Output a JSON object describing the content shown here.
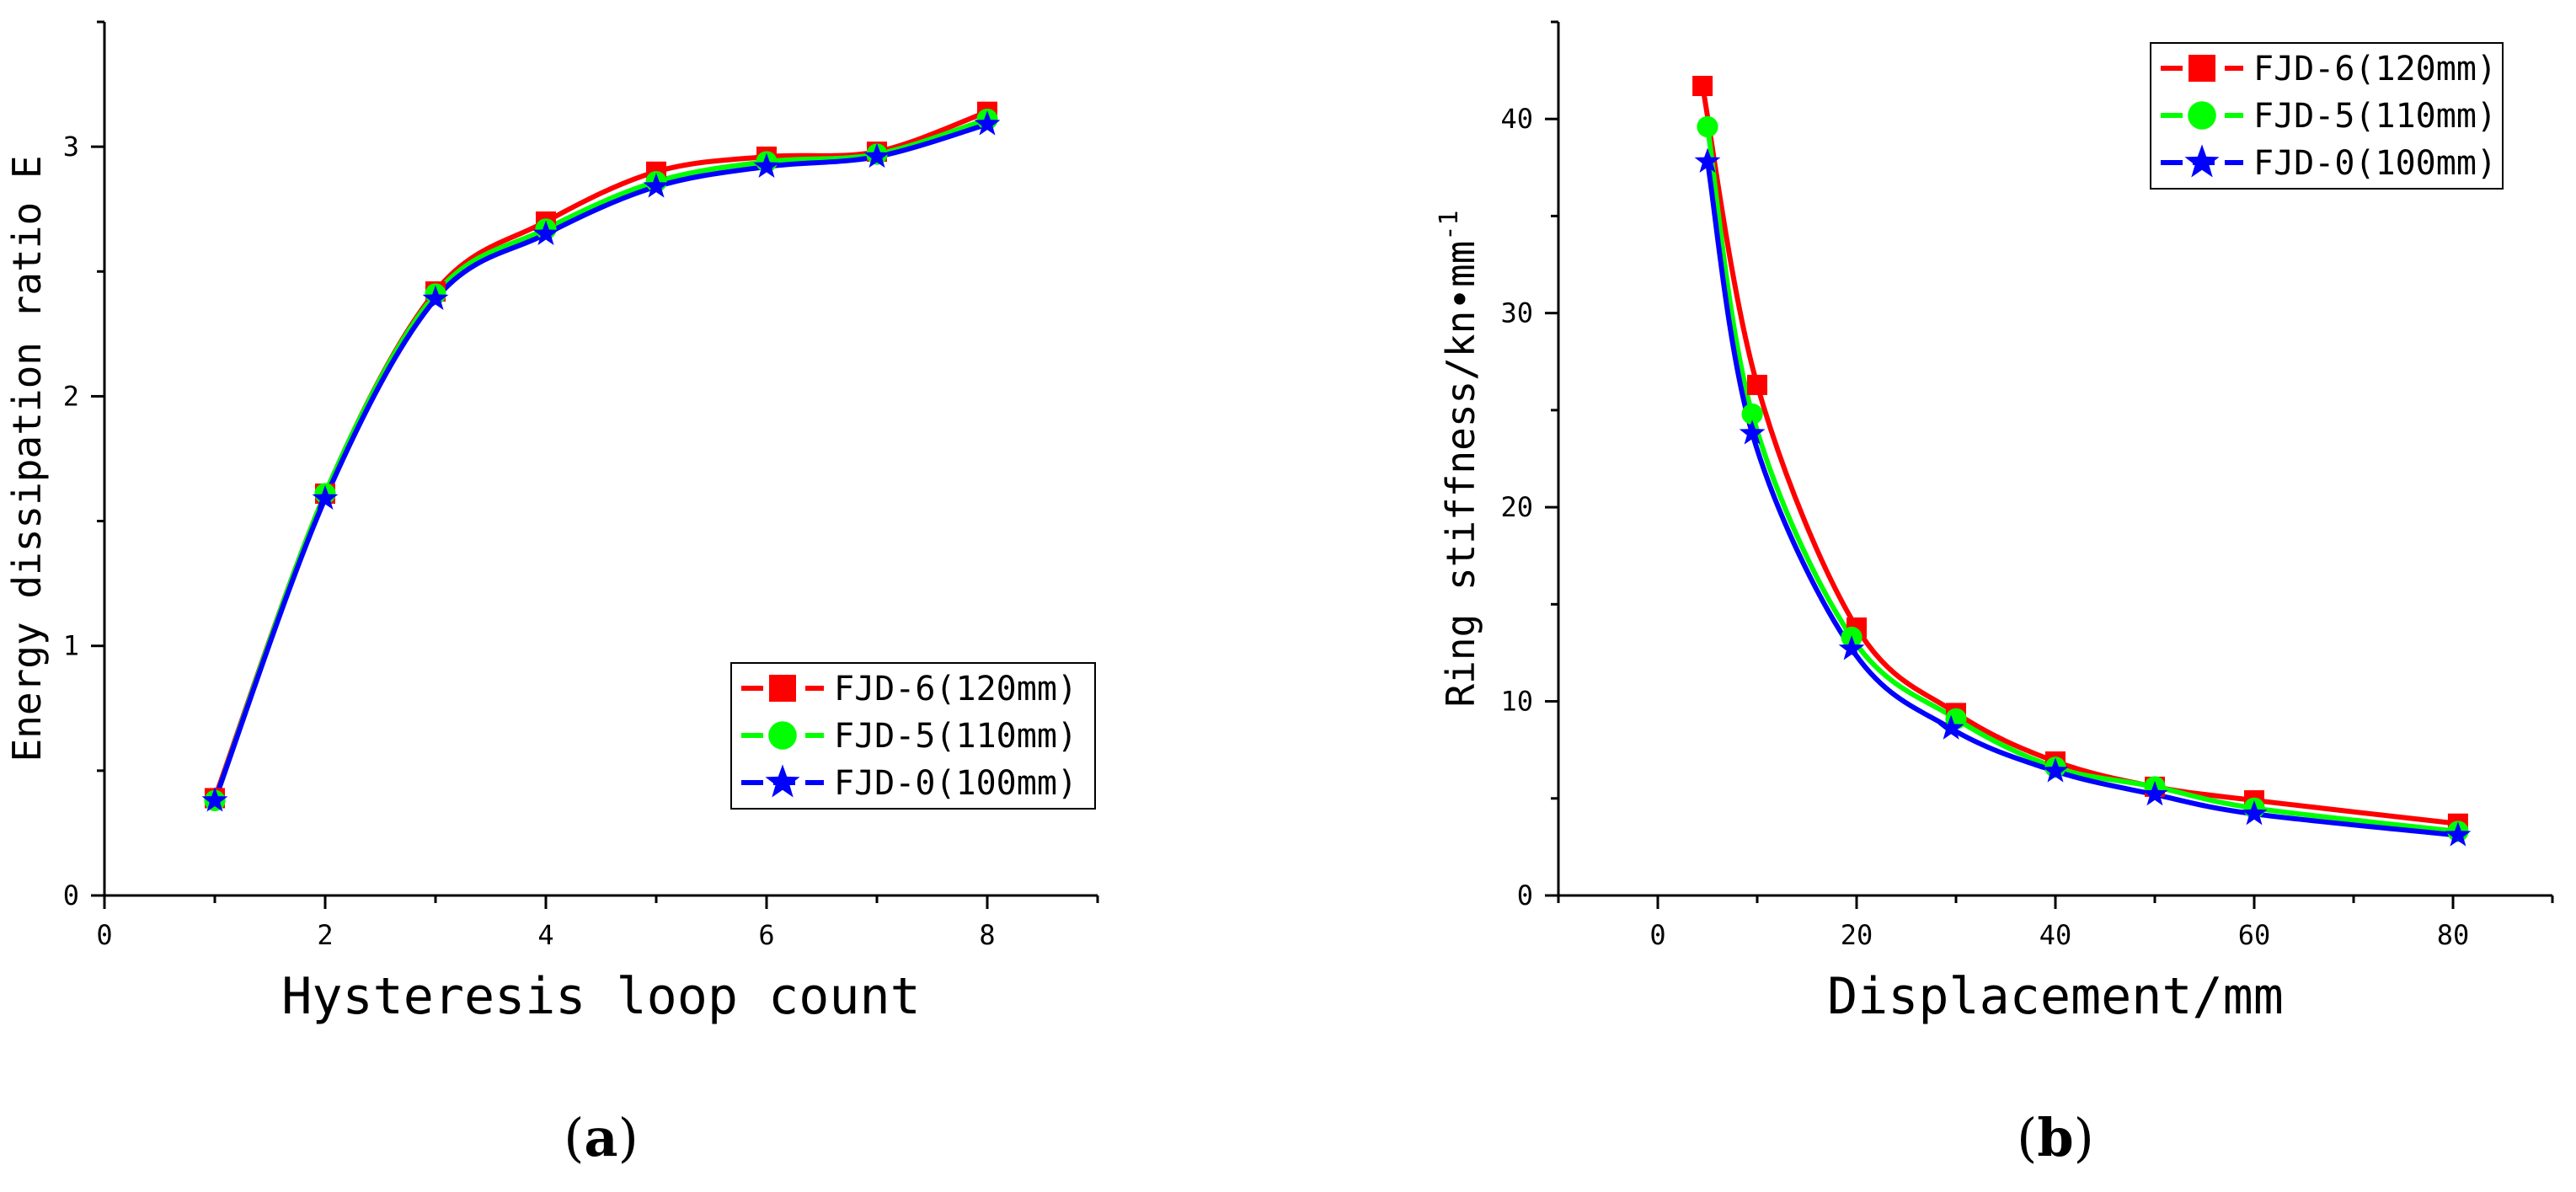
{
  "chart_data": [
    {
      "type": "line",
      "xlabel": "Hysteresis loop count",
      "ylabel": "Energy dissipation ratio E",
      "xlim": [
        0,
        9
      ],
      "ylim": [
        0,
        3.5
      ],
      "xticks": [
        "0",
        "2",
        "4",
        "6",
        "8"
      ],
      "yticks": [
        "0",
        "1",
        "2",
        "3"
      ],
      "legend_position": "bottom-right",
      "panel_label": [
        "(",
        "a",
        ")"
      ],
      "series": [
        {
          "name": "FJD-6(120mm)",
          "color": "#ff0000",
          "marker": "square",
          "x": [
            1,
            2,
            3,
            4,
            5,
            6,
            7,
            8
          ],
          "y": [
            0.39,
            1.61,
            2.42,
            2.7,
            2.9,
            2.96,
            2.98,
            3.14
          ]
        },
        {
          "name": "FJD-5(110mm)",
          "color": "#00ff00",
          "marker": "circle",
          "x": [
            1,
            2,
            3,
            4,
            5,
            6,
            7,
            8
          ],
          "y": [
            0.38,
            1.61,
            2.41,
            2.67,
            2.86,
            2.94,
            2.97,
            3.11
          ]
        },
        {
          "name": "FJD-0(100mm)",
          "color": "#0000ff",
          "marker": "star",
          "x": [
            1,
            2,
            3,
            4,
            5,
            6,
            7,
            8
          ],
          "y": [
            0.38,
            1.59,
            2.39,
            2.65,
            2.84,
            2.92,
            2.96,
            3.09
          ]
        }
      ]
    },
    {
      "type": "line",
      "xlabel": "Displacement/mm",
      "ylabel": "Ring stiffness/kn•mm",
      "ylabel_superscript": "-1",
      "xlim": [
        -10,
        90
      ],
      "ylim": [
        0,
        45
      ],
      "xticks": [
        "0",
        "20",
        "40",
        "60",
        "80"
      ],
      "yticks": [
        "0",
        "10",
        "20",
        "30",
        "40"
      ],
      "legend_position": "top-right",
      "panel_label": [
        "(",
        "b",
        ")"
      ],
      "series": [
        {
          "name": "FJD-6(120mm)",
          "color": "#ff0000",
          "marker": "square",
          "x": [
            4.5,
            10,
            20,
            30,
            40,
            50,
            60,
            80.5
          ],
          "y": [
            41.7,
            26.3,
            13.8,
            9.4,
            6.9,
            5.6,
            4.9,
            3.7
          ]
        },
        {
          "name": "FJD-5(110mm)",
          "color": "#00ff00",
          "marker": "circle",
          "x": [
            5,
            9.5,
            19.5,
            30,
            40,
            50,
            60,
            80.5
          ],
          "y": [
            39.6,
            24.8,
            13.3,
            9.1,
            6.6,
            5.6,
            4.5,
            3.3
          ]
        },
        {
          "name": "FJD-0(100mm)",
          "color": "#0000ff",
          "marker": "star",
          "x": [
            5,
            9.5,
            19.5,
            29.5,
            40,
            50,
            60,
            80.5
          ],
          "y": [
            37.8,
            23.8,
            12.7,
            8.6,
            6.4,
            5.2,
            4.2,
            3.1
          ]
        }
      ]
    }
  ]
}
